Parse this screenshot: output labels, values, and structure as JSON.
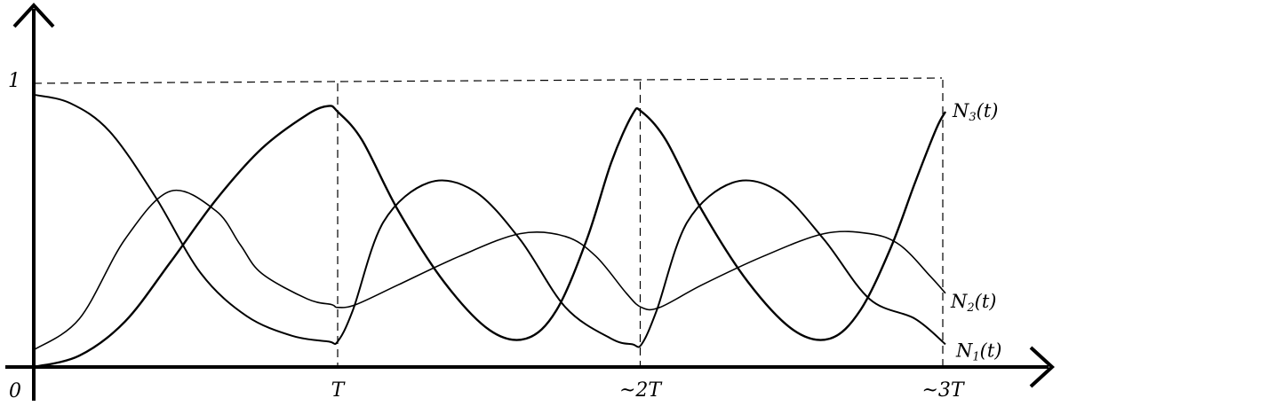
{
  "chart_data": {
    "type": "line",
    "title": "",
    "xlabel": "",
    "ylabel": "",
    "origin_label": "0",
    "xlim": [
      0,
      3
    ],
    "ylim": [
      0,
      1
    ],
    "grid": false,
    "legend": "inline-right",
    "x_ticks": [
      {
        "value": 1,
        "label": "T"
      },
      {
        "value": 2,
        "label": "~2T"
      },
      {
        "value": 3,
        "label": "~3T"
      }
    ],
    "y_ticks": [
      {
        "value": 1,
        "label": "1"
      }
    ],
    "series": [
      {
        "name": "N3(t)",
        "label_main": "N",
        "label_sub": "3",
        "label_tail": "(t)",
        "stroke_width": 2.4,
        "x": [
          0,
          0.15,
          0.3,
          0.45,
          0.6,
          0.75,
          0.9,
          0.97,
          1.0,
          1.08,
          1.2,
          1.35,
          1.5,
          1.62,
          1.72,
          1.82,
          1.9,
          1.97,
          2.0,
          2.08,
          2.2,
          2.35,
          2.5,
          2.62,
          2.72,
          2.82,
          2.9,
          2.97,
          3.0
        ],
        "y": [
          0,
          0.04,
          0.16,
          0.37,
          0.59,
          0.77,
          0.89,
          0.92,
          0.9,
          0.8,
          0.55,
          0.3,
          0.13,
          0.1,
          0.2,
          0.45,
          0.72,
          0.89,
          0.9,
          0.8,
          0.55,
          0.3,
          0.13,
          0.1,
          0.2,
          0.42,
          0.65,
          0.84,
          0.9
        ]
      },
      {
        "name": "N2(t)",
        "label_main": "N",
        "label_sub": "2",
        "label_tail": "(t)",
        "stroke_width": 1.6,
        "x": [
          0,
          0.15,
          0.3,
          0.45,
          0.6,
          0.68,
          0.75,
          0.9,
          0.98,
          1.0,
          1.06,
          1.2,
          1.4,
          1.6,
          1.75,
          1.85,
          1.95,
          2.0,
          2.06,
          2.2,
          2.4,
          2.6,
          2.75,
          2.85,
          2.95,
          3.0
        ],
        "y": [
          0.06,
          0.17,
          0.45,
          0.62,
          0.55,
          0.43,
          0.33,
          0.24,
          0.22,
          0.21,
          0.22,
          0.29,
          0.39,
          0.47,
          0.46,
          0.39,
          0.26,
          0.21,
          0.21,
          0.29,
          0.39,
          0.47,
          0.47,
          0.43,
          0.32,
          0.26
        ]
      },
      {
        "name": "N1(t)",
        "label_main": "N",
        "label_sub": "1",
        "label_tail": "(t)",
        "stroke_width": 2.0,
        "x": [
          0,
          0.12,
          0.25,
          0.4,
          0.55,
          0.7,
          0.85,
          0.97,
          1.0,
          1.05,
          1.15,
          1.3,
          1.45,
          1.6,
          1.75,
          1.9,
          1.97,
          2.0,
          2.05,
          2.15,
          2.3,
          2.45,
          2.6,
          2.75,
          2.9,
          3.0
        ],
        "y": [
          0.96,
          0.93,
          0.83,
          0.6,
          0.33,
          0.18,
          0.11,
          0.09,
          0.09,
          0.2,
          0.51,
          0.65,
          0.62,
          0.45,
          0.21,
          0.1,
          0.08,
          0.08,
          0.2,
          0.51,
          0.65,
          0.62,
          0.45,
          0.24,
          0.17,
          0.08
        ]
      }
    ]
  }
}
